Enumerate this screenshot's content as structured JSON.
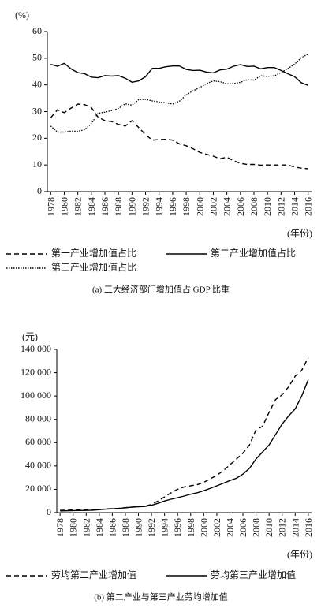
{
  "chart_data": [
    {
      "type": "line",
      "y_label": "(%)",
      "x_label": "(年份)",
      "caption": "(a) 三大经济部门增加值占 GDP 比重",
      "x": [
        1978,
        1979,
        1980,
        1981,
        1982,
        1983,
        1984,
        1985,
        1986,
        1987,
        1988,
        1989,
        1990,
        1991,
        1992,
        1993,
        1994,
        1995,
        1996,
        1997,
        1998,
        1999,
        2000,
        2001,
        2002,
        2003,
        2004,
        2005,
        2006,
        2007,
        2008,
        2009,
        2010,
        2011,
        2012,
        2013,
        2014,
        2015,
        2016
      ],
      "xlim": [
        1977.5,
        2016.5
      ],
      "xticks": [
        1978,
        1980,
        1982,
        1984,
        1986,
        1988,
        1990,
        1992,
        1994,
        1996,
        1998,
        2000,
        2002,
        2004,
        2006,
        2008,
        2010,
        2012,
        2014,
        2016
      ],
      "ylim": [
        0,
        60
      ],
      "yticks": [
        0,
        10,
        20,
        30,
        40,
        50,
        60
      ],
      "series": [
        {
          "name": "第一产业增加值占比",
          "color": "#000000",
          "dash": "dashed",
          "values": [
            27.7,
            30.7,
            29.6,
            31.3,
            32.8,
            32.6,
            31.5,
            27.9,
            26.6,
            26.3,
            25.2,
            24.6,
            26.6,
            24.0,
            21.3,
            19.3,
            19.5,
            19.6,
            19.3,
            17.9,
            17.2,
            16.1,
            14.7,
            14.0,
            13.3,
            12.3,
            12.9,
            11.6,
            10.6,
            10.2,
            10.2,
            9.9,
            10.0,
            10.0,
            10.0,
            10.0,
            9.2,
            8.8,
            8.6
          ]
        },
        {
          "name": "第二产业增加值占比",
          "color": "#000000",
          "dash": "solid",
          "values": [
            47.7,
            47.0,
            48.1,
            46.0,
            44.6,
            44.2,
            42.9,
            42.7,
            43.5,
            43.3,
            43.5,
            42.5,
            41.0,
            41.5,
            43.1,
            46.2,
            46.2,
            46.8,
            47.1,
            47.1,
            45.8,
            45.4,
            45.5,
            44.8,
            44.5,
            45.6,
            45.9,
            47.0,
            47.6,
            46.9,
            47.0,
            46.0,
            46.5,
            46.5,
            45.4,
            44.2,
            43.1,
            40.8,
            39.8
          ]
        },
        {
          "name": "第三产业增加值占比",
          "color": "#000000",
          "dash": "dotted",
          "values": [
            24.6,
            22.3,
            22.3,
            22.7,
            22.6,
            23.2,
            25.5,
            29.4,
            29.8,
            30.4,
            31.2,
            32.9,
            32.4,
            34.5,
            34.6,
            34.0,
            33.6,
            33.3,
            32.8,
            33.9,
            36.2,
            37.8,
            39.0,
            40.5,
            41.5,
            41.2,
            40.4,
            40.5,
            41.0,
            41.9,
            41.8,
            43.4,
            43.2,
            43.4,
            44.6,
            46.1,
            47.8,
            50.2,
            51.6
          ]
        }
      ]
    },
    {
      "type": "line",
      "y_label": "(元)",
      "x_label": "(年份)",
      "caption": "(b) 第二产业与第三产业劳均增加值",
      "x": [
        1978,
        1979,
        1980,
        1981,
        1982,
        1983,
        1984,
        1985,
        1986,
        1987,
        1988,
        1989,
        1990,
        1991,
        1992,
        1993,
        1994,
        1995,
        1996,
        1997,
        1998,
        1999,
        2000,
        2001,
        2002,
        2003,
        2004,
        2005,
        2006,
        2007,
        2008,
        2009,
        2010,
        2011,
        2012,
        2013,
        2014,
        2015,
        2016
      ],
      "xlim": [
        1977.5,
        2016.5
      ],
      "xticks": [
        1978,
        1980,
        1982,
        1984,
        1986,
        1988,
        1990,
        1992,
        1994,
        1996,
        1998,
        2000,
        2002,
        2004,
        2006,
        2008,
        2010,
        2012,
        2014,
        2016
      ],
      "ylim": [
        0,
        140000
      ],
      "yticks": [
        0,
        {
          "value": 20000,
          "label": "20 000"
        },
        {
          "value": 40000,
          "label": "40 000"
        },
        {
          "value": 60000,
          "label": "60 000"
        },
        {
          "value": 80000,
          "label": "80 000"
        },
        {
          "value": 100000,
          "label": "100 000"
        },
        {
          "value": 120000,
          "label": "120 000"
        },
        {
          "value": 140000,
          "label": "140 000"
        }
      ],
      "series": [
        {
          "name": "劳均第二产业增加值",
          "color": "#000000",
          "dash": "dashed",
          "values": [
            2000,
            2100,
            2200,
            2200,
            2200,
            2400,
            2700,
            3200,
            3400,
            3700,
            4300,
            4800,
            5200,
            5600,
            7000,
            10000,
            13500,
            17000,
            20000,
            22000,
            23000,
            24000,
            26000,
            29000,
            32000,
            36000,
            41000,
            46000,
            51000,
            58000,
            71000,
            74000,
            86000,
            97000,
            101000,
            108000,
            117000,
            122000,
            133000
          ]
        },
        {
          "name": "劳均第三产业增加值",
          "color": "#000000",
          "dash": "solid",
          "values": [
            1500,
            1600,
            1700,
            1800,
            1900,
            2100,
            2500,
            3000,
            3300,
            3600,
            4200,
            4700,
            5000,
            5300,
            6300,
            8000,
            10000,
            11500,
            12800,
            14200,
            15800,
            17000,
            18800,
            20800,
            23000,
            25200,
            27500,
            29500,
            33000,
            38000,
            46000,
            52000,
            58000,
            67000,
            76000,
            83000,
            89000,
            100000,
            114000
          ]
        }
      ]
    }
  ]
}
